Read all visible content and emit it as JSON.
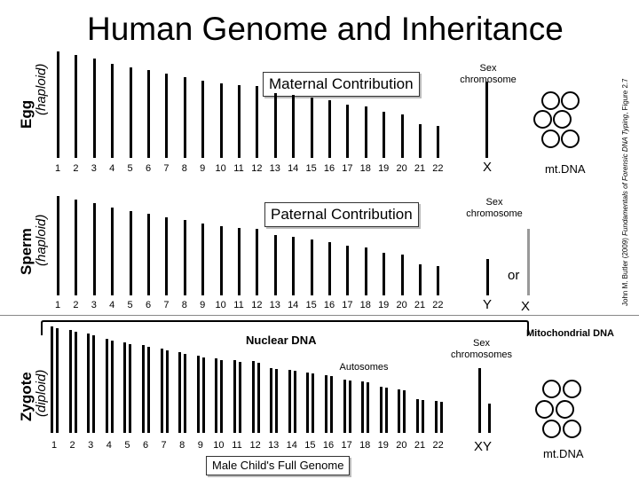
{
  "title": "Human Genome and Inheritance",
  "credit": {
    "author": "John M. Butler (2009) ",
    "book": "Fundamentals of Forensic DNA Typing",
    "figure": ", Figure 2.7"
  },
  "egg": {
    "label": "Egg",
    "ploidy": "(haploid)",
    "contribution": "Maternal Contribution",
    "sex_chromosome_label": "Sex\nchromosome",
    "sex_chromosome": "X",
    "mtdna": "mt.DNA"
  },
  "sperm": {
    "label": "Sperm",
    "ploidy": "(haploid)",
    "contribution": "Paternal Contribution",
    "sex_chromosome_label": "Sex\nchromosome",
    "or": "or",
    "y": "Y",
    "x": "X"
  },
  "zygote": {
    "label": "Zygote",
    "ploidy": "(diploid)",
    "nuclear_dna": "Nuclear DNA",
    "autosomes": "Autosomes",
    "sex_chromosomes_label": "Sex\nchromosomes",
    "sex_chromosomes": "XY",
    "mitochondrial": "Mitochondrial DNA",
    "mtdna": "mt.DNA",
    "genome_caption": "Male Child's Full Genome"
  },
  "chromosome_numbers": [
    "1",
    "2",
    "3",
    "4",
    "5",
    "6",
    "7",
    "8",
    "9",
    "10",
    "11",
    "12",
    "13",
    "14",
    "15",
    "16",
    "17",
    "18",
    "19",
    "20",
    "21",
    "22"
  ],
  "colors": {
    "chromosome": "#000000",
    "optional_x": "#999999",
    "divider": "#888888"
  }
}
